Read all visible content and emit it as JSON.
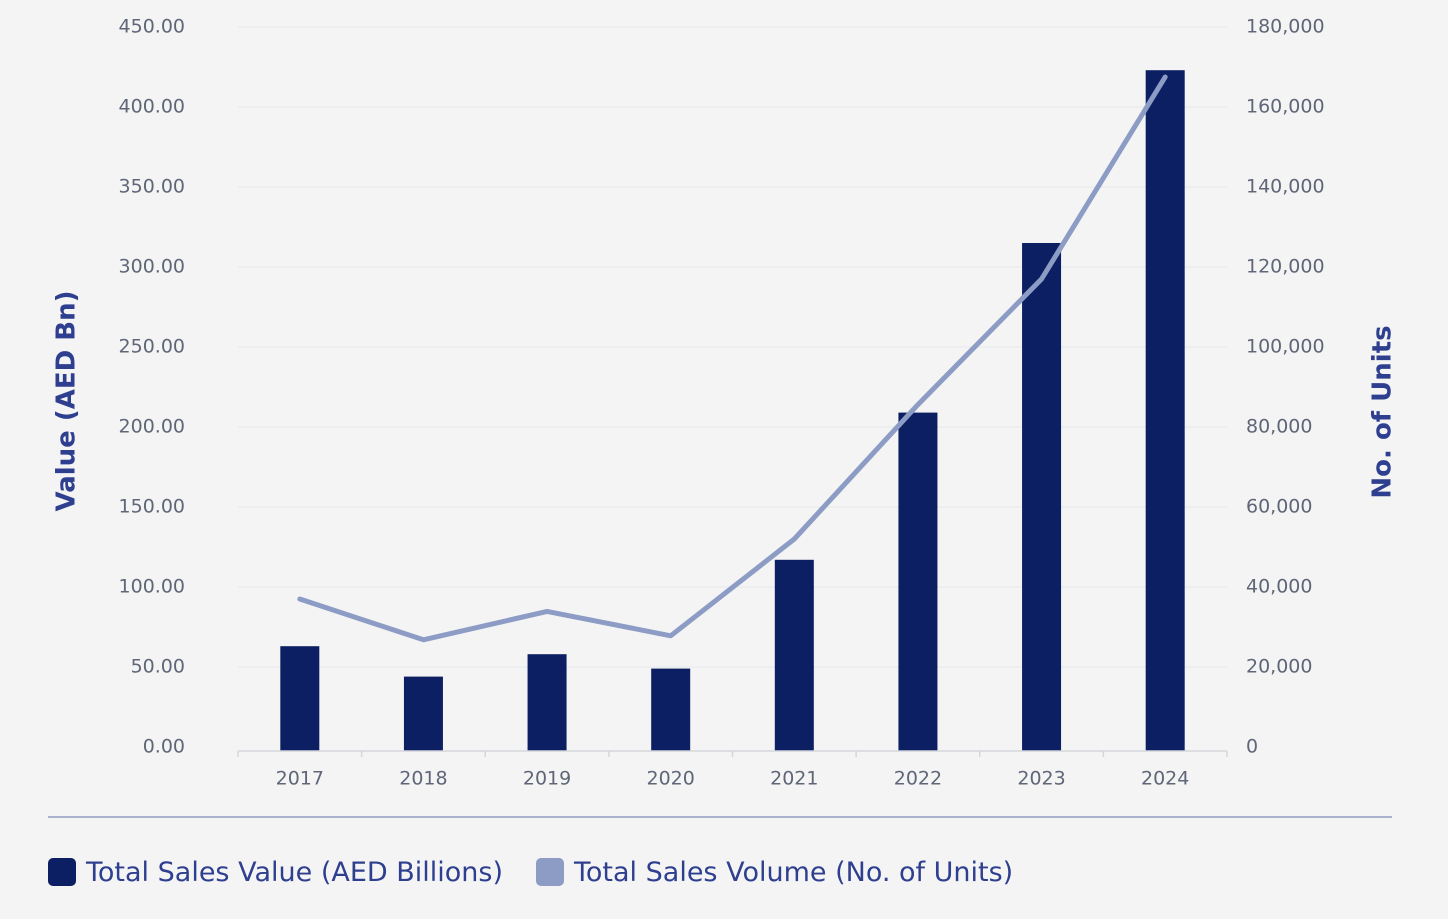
{
  "chart_data": {
    "type": "bar",
    "categories": [
      "2017",
      "2018",
      "2019",
      "2020",
      "2021",
      "2022",
      "2023",
      "2024"
    ],
    "series": [
      {
        "name": "Total Sales Value (AED Billions)",
        "type": "bar",
        "axis": "left",
        "color": "#0c1f63",
        "values": [
          63,
          44,
          58,
          49,
          117,
          209,
          315,
          423
        ]
      },
      {
        "name": "Total Sales Volume (No. of Units)",
        "type": "line",
        "axis": "right",
        "color": "#8c9cc4",
        "values": [
          37000,
          26800,
          33900,
          27800,
          52000,
          85600,
          117000,
          167500
        ]
      }
    ],
    "y_left": {
      "label": "Value (AED Bn)",
      "ylim": [
        0,
        450
      ],
      "ticks": [
        "0.00",
        "50.00",
        "100.00",
        "150.00",
        "200.00",
        "250.00",
        "300.00",
        "350.00",
        "400.00",
        "450.00"
      ]
    },
    "y_right": {
      "label": "No. of Units",
      "ylim": [
        0,
        180000
      ],
      "ticks": [
        "0",
        "20,000",
        "40,000",
        "60,000",
        "80,000",
        "100,000",
        "120,000",
        "140,000",
        "160,000",
        "180,000"
      ]
    },
    "grid": true,
    "legend_position": "bottom-left"
  },
  "legend": {
    "value_label": "Total Sales Value (AED Billions)",
    "volume_label": "Total Sales Volume (No. of Units)"
  },
  "colors": {
    "bar": "#0c1f63",
    "line": "#8c9cc4",
    "axis_title": "#2f3f8f",
    "grid": "#e6e7eb"
  }
}
